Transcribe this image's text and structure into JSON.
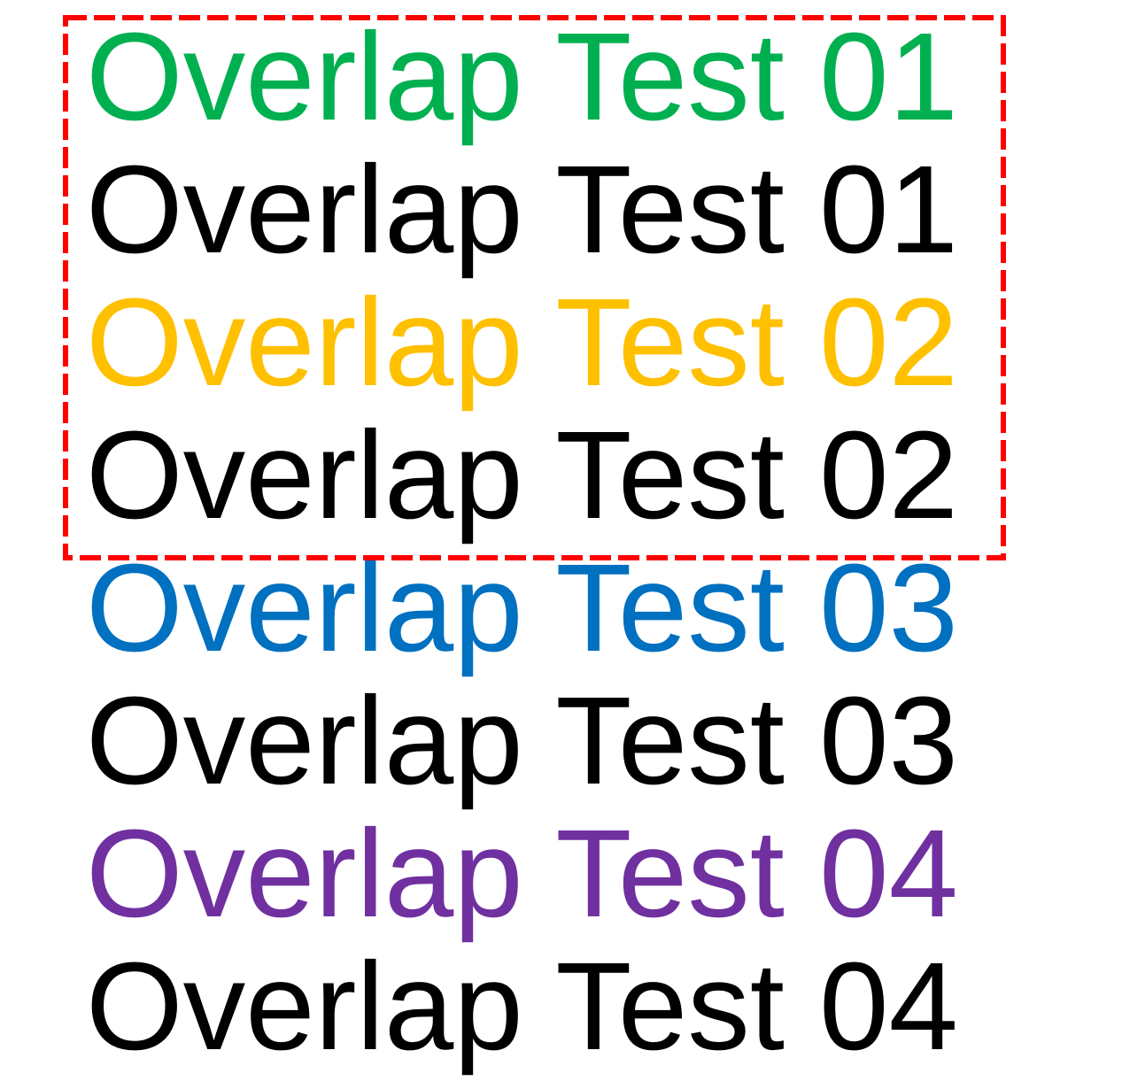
{
  "lines": [
    {
      "text": "Overlap Test 01",
      "color": "#00B050",
      "shadow_color": "#000000"
    },
    {
      "text": "Overlap Test 02",
      "color": "#FFC000",
      "shadow_color": "#000000"
    },
    {
      "text": "Overlap Test 03",
      "color": "#0070C0",
      "shadow_color": "#000000"
    },
    {
      "text": "Overlap Test 04",
      "color": "#7030A0",
      "shadow_color": "#000000"
    }
  ],
  "highlight_box": {
    "color": "#FF0000",
    "style": "dashed"
  }
}
